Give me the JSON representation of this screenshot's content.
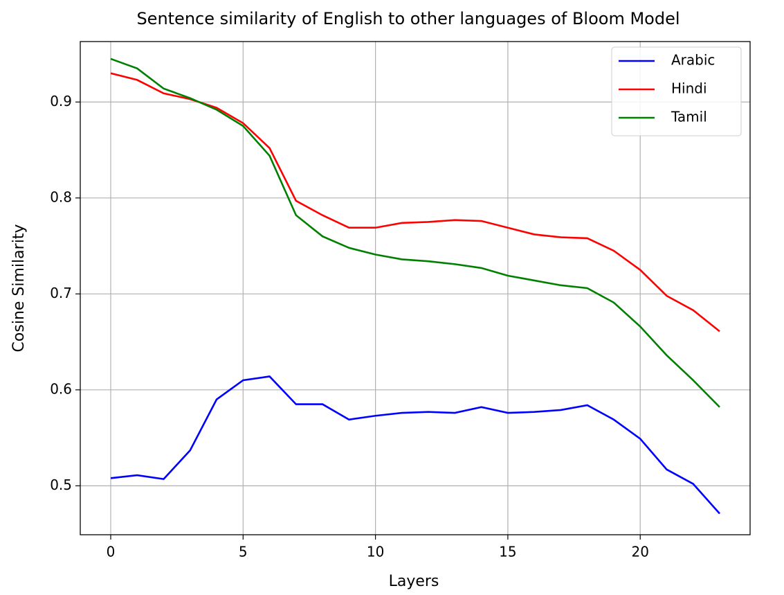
{
  "chart_data": {
    "type": "line",
    "title": "Sentence similarity of English to other languages of Bloom Model",
    "xlabel": "Layers",
    "ylabel": "Cosine Similarity",
    "x": [
      0,
      1,
      2,
      3,
      4,
      5,
      6,
      7,
      8,
      9,
      10,
      11,
      12,
      13,
      14,
      15,
      16,
      17,
      18,
      19,
      20,
      21,
      22,
      23
    ],
    "series": [
      {
        "name": "Arabic",
        "color": "#0000ff",
        "values": [
          0.508,
          0.511,
          0.507,
          0.537,
          0.59,
          0.61,
          0.614,
          0.585,
          0.585,
          0.569,
          0.573,
          0.576,
          0.577,
          0.576,
          0.582,
          0.576,
          0.577,
          0.579,
          0.584,
          0.569,
          0.549,
          0.517,
          0.502,
          0.471
        ]
      },
      {
        "name": "Hindi",
        "color": "#ff0000",
        "values": [
          0.93,
          0.923,
          0.909,
          0.903,
          0.894,
          0.878,
          0.852,
          0.797,
          0.782,
          0.769,
          0.769,
          0.774,
          0.775,
          0.777,
          0.776,
          0.769,
          0.762,
          0.759,
          0.758,
          0.745,
          0.725,
          0.698,
          0.683,
          0.661
        ]
      },
      {
        "name": "Tamil",
        "color": "#008000",
        "values": [
          0.945,
          0.935,
          0.914,
          0.904,
          0.892,
          0.875,
          0.844,
          0.782,
          0.76,
          0.748,
          0.741,
          0.736,
          0.734,
          0.731,
          0.727,
          0.719,
          0.714,
          0.709,
          0.706,
          0.691,
          0.666,
          0.636,
          0.61,
          0.582
        ]
      }
    ],
    "xlim": [
      -1.15,
      24.15
    ],
    "xticks": [
      0,
      5,
      10,
      15,
      20
    ],
    "ylim": [
      0.449,
      0.963
    ],
    "yticks": [
      0.5,
      0.6,
      0.7,
      0.8,
      0.9
    ],
    "grid": true,
    "legend": "upper right"
  }
}
